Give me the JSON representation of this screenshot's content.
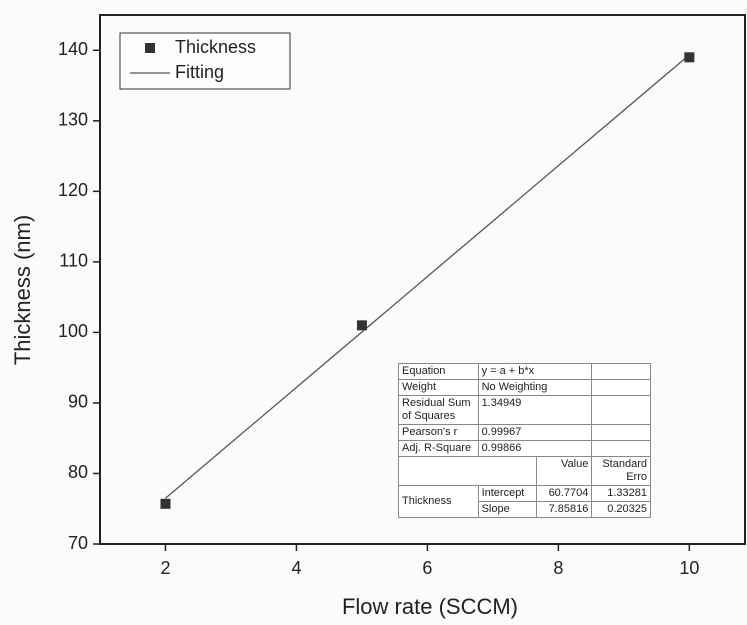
{
  "chart_data": {
    "type": "scatter",
    "x_label": "Flow rate (SCCM)",
    "y_label": "Thickness (nm)",
    "xlim": [
      1,
      10.85
    ],
    "ylim": [
      70,
      145
    ],
    "xticks": [
      2,
      4,
      6,
      8,
      10
    ],
    "yticks": [
      70,
      80,
      90,
      100,
      110,
      120,
      130,
      140
    ],
    "legend": "top-left",
    "series": [
      {
        "name": "Thickness",
        "color": "#333333",
        "kind": "points",
        "x": [
          2,
          5,
          10
        ],
        "values": [
          75.7,
          101,
          139
        ]
      },
      {
        "name": "Fitting",
        "color": "#555555",
        "kind": "line",
        "x": [
          2,
          10
        ],
        "values": [
          76.49,
          139.35
        ]
      }
    ],
    "fit_table": {
      "rows": [
        [
          "Equation",
          "y = a + b*x"
        ],
        [
          "Weight",
          "No Weighting"
        ],
        [
          "Residual Sum of Squares",
          "1.34949"
        ],
        [
          "Pearson's r",
          "0.99967"
        ],
        [
          "Adj. R-Square",
          "0.99866"
        ]
      ],
      "header": [
        "Value",
        "Standard Erro"
      ],
      "group": "Thickness",
      "params": [
        [
          "Intercept",
          "60.7704",
          "1.33281"
        ],
        [
          "Slope",
          "7.85816",
          "0.20325"
        ]
      ]
    }
  }
}
